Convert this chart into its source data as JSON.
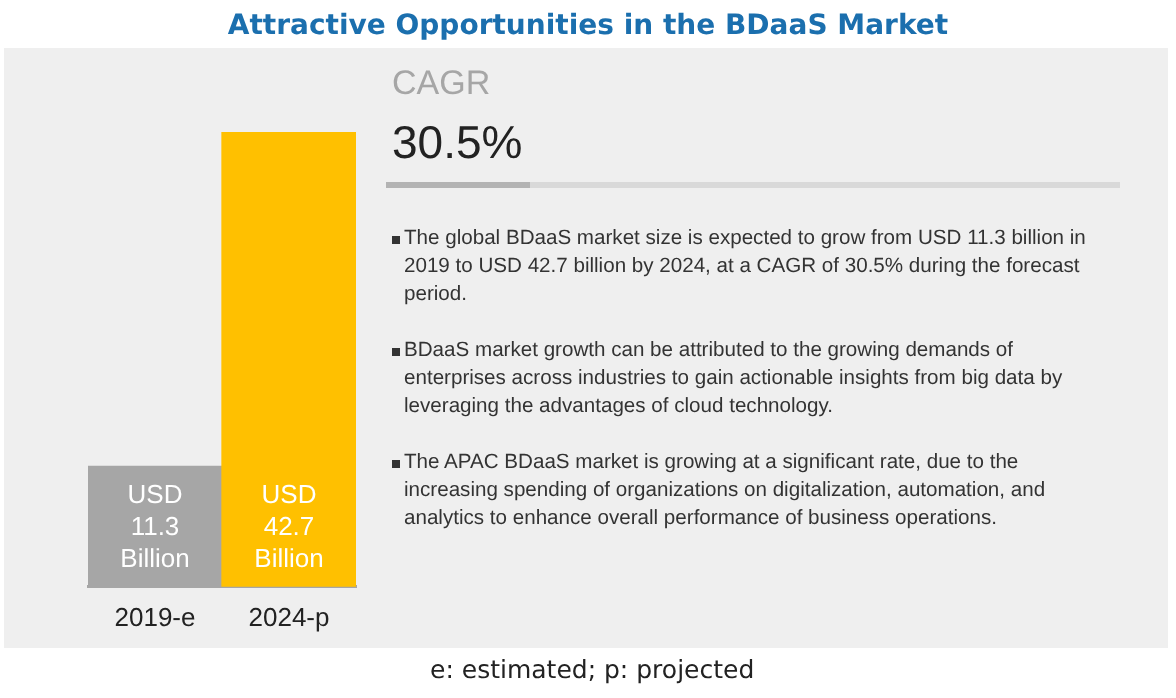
{
  "chart_data": {
    "type": "bar",
    "title": "Attractive Opportunities in the BDaaS Market",
    "categories": [
      "2019-e",
      "2024-p"
    ],
    "values": [
      11.3,
      42.7
    ],
    "colors": [
      "#a6a6a6",
      "#ffc000"
    ],
    "value_labels": [
      "USD 11.3 Billion",
      "USD 42.7 Billion"
    ],
    "annotations": [
      "CAGR",
      "30.5%",
      "The global BDaaS market size is expected to grow from USD 11.3 billion in 2019 to USD 42.7 billion by 2024, at a CAGR of 30.5% during the forecast period.",
      "BDaaS market growth can be attributed to the growing demands of enterprises across industries to gain actionable insights from big data by leveraging the advantages of cloud technology.",
      "The APAC BDaaS market is growing at a significant rate, due to the increasing spending of organizations on digitalization, automation, and analytics to enhance overall performance of business operations.",
      "e: estimated; p: projected"
    ],
    "grid": false,
    "legend": false
  }
}
